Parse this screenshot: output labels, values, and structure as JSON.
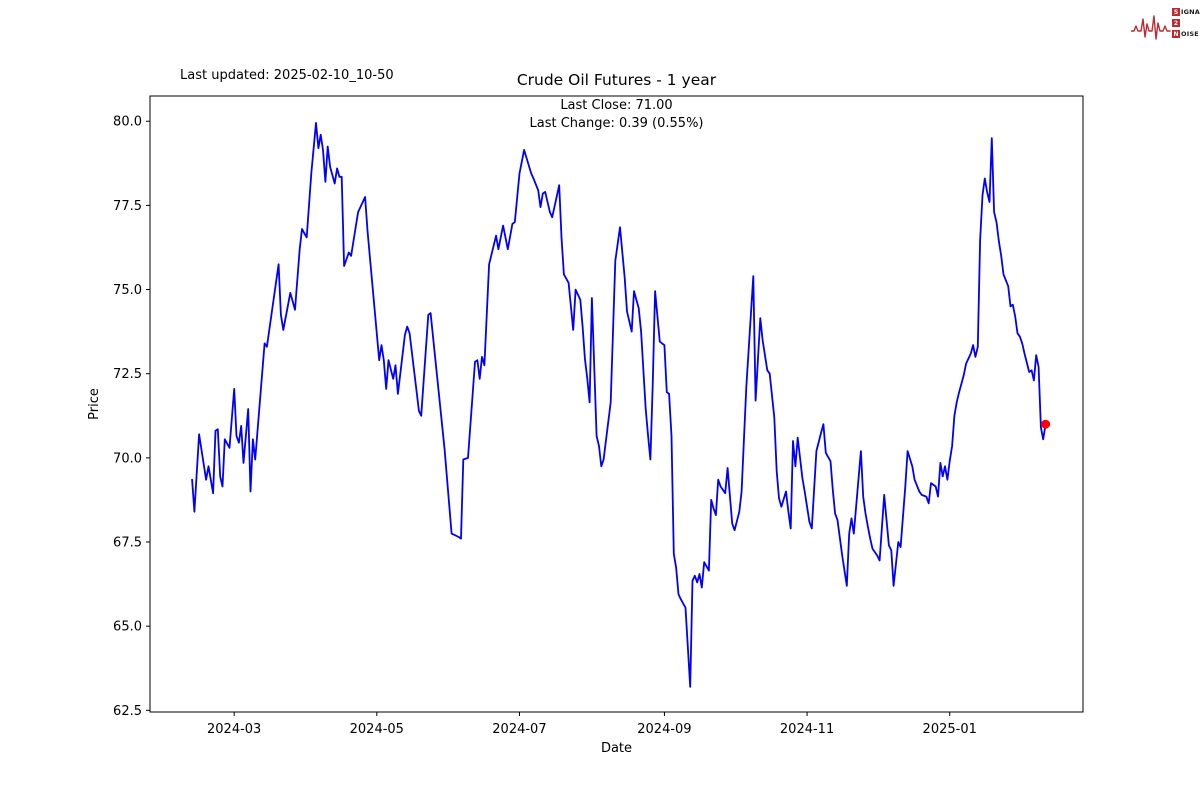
{
  "figure": {
    "last_updated": "Last updated: 2025-02-10_10-50",
    "background": "#ffffff"
  },
  "logo": {
    "color": "#bf2a30",
    "lines": [
      {
        "badge": "S",
        "rest": "IGNAL"
      },
      {
        "badge": "2",
        "rest": ""
      },
      {
        "badge": "N",
        "rest": "OISE"
      }
    ]
  },
  "chart_data": {
    "type": "line",
    "title": "Crude Oil Futures - 1 year",
    "annotation_line1": "Last Close: 71.00",
    "annotation_line2": "Last Change: 0.39 (0.55%)",
    "last_close": 71.0,
    "last_change": 0.39,
    "last_change_pct": 0.55,
    "xlabel": "Date",
    "ylabel": "Price",
    "line_color": "#0000ff",
    "marker_color": "#ff0000",
    "axis_color": "#000000",
    "grid": false,
    "legend": "none",
    "x_unit": "days since 2024-02-12",
    "x_start_date": "2024-02-12",
    "x_end_date": "2025-02-10",
    "xlim": [
      -18,
      381
    ],
    "ylim": [
      62.45,
      80.75
    ],
    "x_ticks": [
      {
        "day": 18,
        "label": "2024-03"
      },
      {
        "day": 79,
        "label": "2024-05"
      },
      {
        "day": 140,
        "label": "2024-07"
      },
      {
        "day": 202,
        "label": "2024-09"
      },
      {
        "day": 263,
        "label": "2024-11"
      },
      {
        "day": 324,
        "label": "2025-01"
      }
    ],
    "y_ticks": [
      {
        "v": 62.5,
        "label": "62.5"
      },
      {
        "v": 65.0,
        "label": "65.0"
      },
      {
        "v": 67.5,
        "label": "67.5"
      },
      {
        "v": 70.0,
        "label": "70.0"
      },
      {
        "v": 72.5,
        "label": "72.5"
      },
      {
        "v": 75.0,
        "label": "75.0"
      },
      {
        "v": 77.5,
        "label": "77.5"
      },
      {
        "v": 80.0,
        "label": "80.0"
      }
    ],
    "points": [
      [
        0,
        69.35
      ],
      [
        1,
        68.4
      ],
      [
        3,
        70.7
      ],
      [
        6,
        69.35
      ],
      [
        7,
        69.75
      ],
      [
        9,
        68.95
      ],
      [
        10,
        70.8
      ],
      [
        11,
        70.85
      ],
      [
        12,
        69.45
      ],
      [
        13,
        69.15
      ],
      [
        14,
        70.55
      ],
      [
        16,
        70.3
      ],
      [
        18,
        72.05
      ],
      [
        19,
        70.65
      ],
      [
        20,
        70.45
      ],
      [
        21,
        70.95
      ],
      [
        22,
        69.85
      ],
      [
        24,
        71.45
      ],
      [
        25,
        69.0
      ],
      [
        26,
        70.55
      ],
      [
        27,
        69.95
      ],
      [
        31,
        73.4
      ],
      [
        32,
        73.3
      ],
      [
        37,
        75.75
      ],
      [
        38,
        74.25
      ],
      [
        39,
        73.8
      ],
      [
        42,
        74.9
      ],
      [
        44,
        74.4
      ],
      [
        46,
        76.2
      ],
      [
        47,
        76.8
      ],
      [
        49,
        76.55
      ],
      [
        51,
        78.45
      ],
      [
        53,
        79.95
      ],
      [
        54,
        79.2
      ],
      [
        55,
        79.6
      ],
      [
        56,
        79.15
      ],
      [
        57,
        78.2
      ],
      [
        58,
        79.25
      ],
      [
        59,
        78.65
      ],
      [
        61,
        78.15
      ],
      [
        62,
        78.6
      ],
      [
        63,
        78.35
      ],
      [
        64,
        78.35
      ],
      [
        65,
        75.7
      ],
      [
        67,
        76.1
      ],
      [
        68,
        76.0
      ],
      [
        71,
        77.3
      ],
      [
        74,
        77.75
      ],
      [
        75,
        76.75
      ],
      [
        80,
        72.9
      ],
      [
        81,
        73.35
      ],
      [
        82,
        72.9
      ],
      [
        83,
        72.05
      ],
      [
        84,
        72.9
      ],
      [
        86,
        72.35
      ],
      [
        87,
        72.75
      ],
      [
        88,
        71.9
      ],
      [
        91,
        73.65
      ],
      [
        92,
        73.9
      ],
      [
        93,
        73.7
      ],
      [
        97,
        71.4
      ],
      [
        98,
        71.25
      ],
      [
        101,
        74.25
      ],
      [
        102,
        74.3
      ],
      [
        108,
        70.25
      ],
      [
        111,
        67.75
      ],
      [
        114,
        67.65
      ],
      [
        115,
        67.6
      ],
      [
        116,
        69.95
      ],
      [
        118,
        70.0
      ],
      [
        121,
        72.85
      ],
      [
        122,
        72.9
      ],
      [
        123,
        72.35
      ],
      [
        124,
        73.0
      ],
      [
        125,
        72.75
      ],
      [
        127,
        75.75
      ],
      [
        130,
        76.6
      ],
      [
        131,
        76.2
      ],
      [
        133,
        76.9
      ],
      [
        135,
        76.2
      ],
      [
        137,
        76.95
      ],
      [
        138,
        77.0
      ],
      [
        140,
        78.45
      ],
      [
        142,
        79.15
      ],
      [
        145,
        78.45
      ],
      [
        146,
        78.3
      ],
      [
        148,
        77.95
      ],
      [
        149,
        77.45
      ],
      [
        150,
        77.85
      ],
      [
        151,
        77.9
      ],
      [
        153,
        77.3
      ],
      [
        154,
        77.15
      ],
      [
        157,
        78.1
      ],
      [
        158,
        76.55
      ],
      [
        159,
        75.45
      ],
      [
        161,
        75.2
      ],
      [
        163,
        73.8
      ],
      [
        164,
        75.0
      ],
      [
        166,
        74.7
      ],
      [
        167,
        73.9
      ],
      [
        168,
        72.95
      ],
      [
        169,
        72.35
      ],
      [
        170,
        71.65
      ],
      [
        171,
        74.75
      ],
      [
        173,
        70.65
      ],
      [
        174,
        70.35
      ],
      [
        175,
        69.75
      ],
      [
        176,
        69.95
      ],
      [
        179,
        71.65
      ],
      [
        180,
        73.75
      ],
      [
        181,
        75.85
      ],
      [
        183,
        76.85
      ],
      [
        185,
        75.35
      ],
      [
        186,
        74.35
      ],
      [
        188,
        73.75
      ],
      [
        189,
        74.95
      ],
      [
        191,
        74.45
      ],
      [
        192,
        73.75
      ],
      [
        194,
        71.45
      ],
      [
        195,
        70.65
      ],
      [
        196,
        69.95
      ],
      [
        197,
        72.15
      ],
      [
        198,
        74.95
      ],
      [
        200,
        73.45
      ],
      [
        202,
        73.35
      ],
      [
        203,
        71.95
      ],
      [
        204,
        71.9
      ],
      [
        205,
        70.65
      ],
      [
        206,
        67.15
      ],
      [
        207,
        66.75
      ],
      [
        208,
        65.95
      ],
      [
        209,
        65.8
      ],
      [
        211,
        65.55
      ],
      [
        213,
        63.2
      ],
      [
        214,
        66.35
      ],
      [
        215,
        66.5
      ],
      [
        216,
        66.3
      ],
      [
        217,
        66.55
      ],
      [
        218,
        66.15
      ],
      [
        219,
        66.9
      ],
      [
        221,
        66.65
      ],
      [
        222,
        68.75
      ],
      [
        223,
        68.5
      ],
      [
        224,
        68.3
      ],
      [
        225,
        69.35
      ],
      [
        226,
        69.15
      ],
      [
        228,
        68.95
      ],
      [
        229,
        69.7
      ],
      [
        231,
        68.05
      ],
      [
        232,
        67.85
      ],
      [
        234,
        68.4
      ],
      [
        235,
        69.0
      ],
      [
        237,
        72.1
      ],
      [
        240,
        75.4
      ],
      [
        241,
        71.7
      ],
      [
        243,
        74.15
      ],
      [
        244,
        73.5
      ],
      [
        246,
        72.6
      ],
      [
        247,
        72.5
      ],
      [
        249,
        71.2
      ],
      [
        250,
        69.6
      ],
      [
        251,
        68.8
      ],
      [
        252,
        68.55
      ],
      [
        254,
        69.0
      ],
      [
        255,
        68.4
      ],
      [
        256,
        67.9
      ],
      [
        257,
        70.5
      ],
      [
        258,
        69.75
      ],
      [
        259,
        70.6
      ],
      [
        261,
        69.4
      ],
      [
        262,
        69.0
      ],
      [
        264,
        68.1
      ],
      [
        265,
        67.9
      ],
      [
        267,
        70.2
      ],
      [
        269,
        70.75
      ],
      [
        270,
        71.0
      ],
      [
        271,
        70.15
      ],
      [
        273,
        69.9
      ],
      [
        274,
        69.05
      ],
      [
        275,
        68.35
      ],
      [
        276,
        68.15
      ],
      [
        278,
        67.1
      ],
      [
        280,
        66.2
      ],
      [
        281,
        67.75
      ],
      [
        282,
        68.2
      ],
      [
        283,
        67.75
      ],
      [
        286,
        70.2
      ],
      [
        287,
        68.85
      ],
      [
        288,
        68.35
      ],
      [
        289,
        67.95
      ],
      [
        290,
        67.6
      ],
      [
        291,
        67.3
      ],
      [
        293,
        67.1
      ],
      [
        294,
        66.95
      ],
      [
        296,
        68.9
      ],
      [
        298,
        67.4
      ],
      [
        299,
        67.25
      ],
      [
        300,
        66.2
      ],
      [
        302,
        67.5
      ],
      [
        303,
        67.35
      ],
      [
        305,
        69.15
      ],
      [
        306,
        70.2
      ],
      [
        308,
        69.75
      ],
      [
        309,
        69.35
      ],
      [
        311,
        69.0
      ],
      [
        312,
        68.9
      ],
      [
        314,
        68.85
      ],
      [
        315,
        68.65
      ],
      [
        316,
        69.25
      ],
      [
        318,
        69.15
      ],
      [
        319,
        68.85
      ],
      [
        320,
        69.85
      ],
      [
        321,
        69.45
      ],
      [
        322,
        69.75
      ],
      [
        323,
        69.35
      ],
      [
        324,
        69.9
      ],
      [
        325,
        70.35
      ],
      [
        326,
        71.25
      ],
      [
        327,
        71.65
      ],
      [
        328,
        71.95
      ],
      [
        330,
        72.45
      ],
      [
        331,
        72.8
      ],
      [
        333,
        73.1
      ],
      [
        334,
        73.35
      ],
      [
        335,
        73.0
      ],
      [
        336,
        73.3
      ],
      [
        337,
        76.45
      ],
      [
        338,
        77.8
      ],
      [
        339,
        78.3
      ],
      [
        340,
        77.9
      ],
      [
        341,
        77.6
      ],
      [
        342,
        79.5
      ],
      [
        343,
        77.3
      ],
      [
        344,
        77.0
      ],
      [
        345,
        76.45
      ],
      [
        346,
        76.0
      ],
      [
        347,
        75.45
      ],
      [
        349,
        75.1
      ],
      [
        350,
        74.5
      ],
      [
        351,
        74.55
      ],
      [
        352,
        74.2
      ],
      [
        353,
        73.7
      ],
      [
        354,
        73.6
      ],
      [
        355,
        73.4
      ],
      [
        356,
        73.1
      ],
      [
        358,
        72.55
      ],
      [
        359,
        72.6
      ],
      [
        360,
        72.3
      ],
      [
        361,
        73.05
      ],
      [
        362,
        72.7
      ],
      [
        363,
        70.9
      ],
      [
        364,
        70.55
      ],
      [
        365,
        71.0
      ]
    ]
  }
}
